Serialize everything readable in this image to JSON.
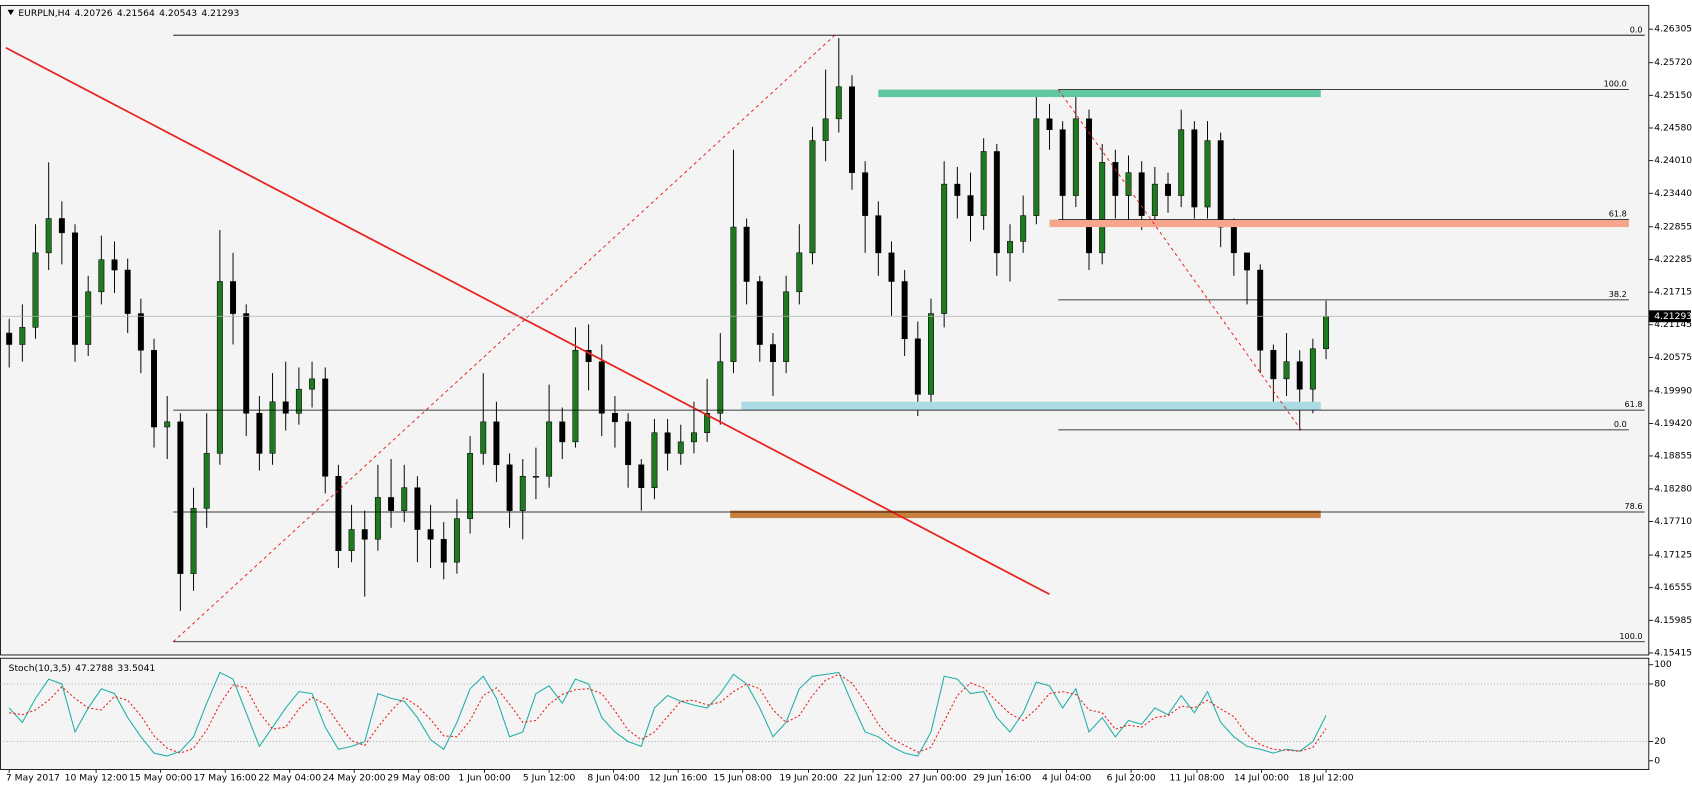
{
  "chart_data": [
    {
      "type": "candlestick",
      "symbol": "EURPLN,H4",
      "up_color": "#1f7a1f",
      "down_color": "#000000",
      "xlim": [
        -0.656,
        124.51
      ],
      "ylim": [
        4.1538,
        4.2672
      ],
      "yticks": [
        4.26305,
        {
          "value": 4.2572,
          "label": "4.25720"
        },
        {
          "value": 4.2515,
          "label": "4.25150"
        },
        {
          "value": 4.2458,
          "label": "4.24580"
        },
        {
          "value": 4.2401,
          "label": "4.24010"
        },
        {
          "value": 4.2344,
          "label": "4.23440"
        },
        4.22855,
        4.22285,
        4.21715,
        4.21145,
        4.20575,
        {
          "value": 4.1999,
          "label": "4.19990"
        },
        {
          "value": 4.1942,
          "label": "4.19420"
        },
        4.18855,
        {
          "value": 4.1828,
          "label": "4.18280"
        },
        {
          "value": 4.1771,
          "label": "4.17710"
        },
        4.17125,
        4.16555,
        4.15985,
        4.15415
      ],
      "current_price_line": true,
      "open": [
        4.21,
        4.208,
        4.211,
        4.224,
        4.23,
        4.2275,
        4.208,
        4.2172,
        4.2228,
        4.221,
        4.2134,
        4.207,
        4.1936,
        4.1945,
        4.168,
        4.1794,
        4.189,
        4.219,
        4.2134,
        4.196,
        4.189,
        4.198,
        4.196,
        4.2002,
        4.202,
        4.185,
        4.172,
        4.1757,
        4.174,
        4.1813,
        4.179,
        4.183,
        4.1757,
        4.174,
        4.17,
        4.1776,
        4.189,
        4.1945,
        4.187,
        4.179,
        4.185,
        4.185,
        4.1945,
        4.191,
        4.207,
        4.205,
        4.196,
        4.1945,
        4.187,
        4.183,
        4.1926,
        4.189,
        4.191,
        4.1926,
        4.196,
        4.205,
        4.2285,
        4.219,
        4.208,
        4.205,
        4.2172,
        4.224,
        4.2436,
        4.2474,
        4.253,
        4.238,
        4.2305,
        4.224,
        4.219,
        4.209,
        4.1993,
        4.2134,
        4.236,
        4.234,
        4.2305,
        4.2417,
        4.224,
        4.226,
        4.2305,
        4.2474,
        4.2455,
        4.234,
        4.2474,
        4.224,
        4.2398,
        4.234,
        4.238,
        4.2305,
        4.236,
        4.234,
        4.2455,
        4.232,
        4.2436,
        4.2285,
        4.224,
        4.221,
        4.207,
        4.202,
        4.205,
        4.2002,
        4.20726
      ],
      "high": [
        4.2125,
        4.215,
        4.229,
        4.2398,
        4.233,
        4.229,
        4.22,
        4.227,
        4.226,
        4.223,
        4.216,
        4.209,
        4.199,
        4.196,
        4.183,
        4.196,
        4.228,
        4.224,
        4.215,
        4.199,
        4.203,
        4.205,
        4.204,
        4.205,
        4.204,
        4.187,
        4.18,
        4.179,
        4.187,
        4.188,
        4.187,
        4.185,
        4.18,
        4.177,
        4.181,
        4.192,
        4.203,
        4.198,
        4.189,
        4.188,
        4.19,
        4.201,
        4.197,
        4.211,
        4.2115,
        4.208,
        4.199,
        4.196,
        4.188,
        4.195,
        4.195,
        4.194,
        4.198,
        4.202,
        4.21,
        4.242,
        4.23,
        4.22,
        4.21,
        4.22,
        4.229,
        4.246,
        4.256,
        4.2615,
        4.255,
        4.24,
        4.233,
        4.226,
        4.221,
        4.212,
        4.216,
        4.24,
        4.239,
        4.238,
        4.244,
        4.243,
        4.229,
        4.234,
        4.252,
        4.25,
        4.247,
        4.2525,
        4.249,
        4.243,
        4.242,
        4.241,
        4.24,
        4.239,
        4.238,
        4.249,
        4.247,
        4.247,
        4.245,
        4.23,
        4.224,
        4.222,
        4.208,
        4.21,
        4.207,
        4.209,
        4.21564
      ],
      "low": [
        4.204,
        4.205,
        4.209,
        4.221,
        4.222,
        4.205,
        4.206,
        4.215,
        4.217,
        4.21,
        4.203,
        4.19,
        4.188,
        4.1615,
        4.165,
        4.176,
        4.187,
        4.208,
        4.192,
        4.186,
        4.187,
        4.193,
        4.194,
        4.197,
        4.182,
        4.169,
        4.17,
        4.164,
        4.172,
        4.176,
        4.177,
        4.17,
        4.169,
        4.167,
        4.168,
        4.175,
        4.187,
        4.184,
        4.176,
        4.174,
        4.181,
        4.183,
        4.188,
        4.19,
        4.2,
        4.192,
        4.19,
        4.183,
        4.179,
        4.181,
        4.186,
        4.187,
        4.189,
        4.191,
        4.194,
        4.203,
        4.215,
        4.205,
        4.199,
        4.203,
        4.215,
        4.222,
        4.24,
        4.245,
        4.235,
        4.224,
        4.22,
        4.213,
        4.206,
        4.1955,
        4.197,
        4.211,
        4.23,
        4.226,
        4.228,
        4.22,
        4.219,
        4.224,
        4.229,
        4.242,
        4.229,
        4.232,
        4.221,
        4.222,
        4.23,
        4.229,
        4.228,
        4.229,
        4.231,
        4.232,
        4.23,
        4.23,
        4.225,
        4.22,
        4.215,
        4.203,
        4.198,
        4.199,
        4.193,
        4.196,
        4.20543
      ],
      "close": [
        4.208,
        4.211,
        4.224,
        4.23,
        4.2275,
        4.208,
        4.2172,
        4.2228,
        4.221,
        4.2134,
        4.207,
        4.1936,
        4.1945,
        4.168,
        4.1794,
        4.189,
        4.219,
        4.2134,
        4.196,
        4.189,
        4.198,
        4.196,
        4.2002,
        4.202,
        4.185,
        4.172,
        4.1757,
        4.174,
        4.1813,
        4.179,
        4.183,
        4.1757,
        4.174,
        4.17,
        4.1776,
        4.189,
        4.1945,
        4.187,
        4.179,
        4.185,
        4.185,
        4.1945,
        4.191,
        4.207,
        4.205,
        4.196,
        4.1945,
        4.187,
        4.183,
        4.1926,
        4.189,
        4.191,
        4.1926,
        4.196,
        4.205,
        4.2285,
        4.219,
        4.208,
        4.205,
        4.2172,
        4.224,
        4.2436,
        4.2474,
        4.253,
        4.238,
        4.2305,
        4.224,
        4.219,
        4.209,
        4.1993,
        4.2134,
        4.236,
        4.234,
        4.2305,
        4.2417,
        4.224,
        4.226,
        4.2305,
        4.2474,
        4.2455,
        4.234,
        4.2474,
        4.224,
        4.2398,
        4.234,
        4.238,
        4.2305,
        4.236,
        4.234,
        4.2455,
        4.232,
        4.2436,
        4.2285,
        4.224,
        4.221,
        4.207,
        4.202,
        4.205,
        4.2002,
        4.20726,
        4.21293
      ],
      "trendlines": [
        {
          "x": [
            -0.25,
            79.0
          ],
          "y": [
            4.2598,
            4.1644
          ],
          "color": "#e8231f"
        }
      ],
      "zones": [
        {
          "x": [
            66.0,
            99.6
          ],
          "y": [
            4.2525,
            4.2512
          ],
          "color": "#5fc8a0"
        },
        {
          "x": [
            79.0,
            123.0
          ],
          "y": [
            4.2298,
            4.2285
          ],
          "color": "#f7a58c"
        },
        {
          "x": [
            55.6,
            99.6
          ],
          "y": [
            4.198,
            4.1965
          ],
          "color": "#a9dbe3"
        },
        {
          "x": [
            54.75,
            99.6
          ],
          "y": [
            4.179,
            4.1777
          ],
          "color": "#c8803c"
        }
      ],
      "fibs": [
        {
          "from": [
            12.46,
            4.1561
          ],
          "to": [
            62.7,
            4.262
          ],
          "x_end": 124.2,
          "color": "#e8231f",
          "levels": [
            {
              "value": 0,
              "label": "0.0"
            },
            61.8,
            78.6,
            {
              "value": 100,
              "label": "100.0"
            }
          ]
        },
        {
          "from": [
            79.67,
            4.2525
          ],
          "to": [
            98.1,
            4.1931
          ],
          "x_end": 123.0,
          "color": "#e8231f",
          "levels": [
            {
              "value": 0,
              "label": "0.0"
            },
            38.2,
            61.8,
            {
              "value": 100,
              "label": "100.0"
            }
          ]
        }
      ]
    },
    {
      "type": "line",
      "name": "Stoch(10,3,5)",
      "xlim": [
        -0.656,
        124.51
      ],
      "ylim": [
        -9.1,
        106.8
      ],
      "yticks": [
        0,
        20,
        80,
        100
      ],
      "levels": [
        20,
        80
      ],
      "xticks": [
        {
          "value": 0,
          "label": "7 May 2017"
        },
        {
          "value": 6.6,
          "label": "10 May 12:00"
        },
        {
          "value": 11.5,
          "label": "15 May 00:00"
        },
        {
          "value": 16.4,
          "label": "17 May 16:00"
        },
        {
          "value": 21.3,
          "label": "22 May 04:00"
        },
        {
          "value": 26.2,
          "label": "24 May 20:00"
        },
        {
          "value": 31.1,
          "label": "29 May 08:00"
        },
        {
          "value": 36.1,
          "label": "1 Jun 00:00"
        },
        {
          "value": 41,
          "label": "5 Jun 12:00"
        },
        {
          "value": 45.9,
          "label": "8 Jun 04:00"
        },
        {
          "value": 50.8,
          "label": "12 Jun 16:00"
        },
        {
          "value": 55.7,
          "label": "15 Jun 08:00"
        },
        {
          "value": 60.7,
          "label": "19 Jun 20:00"
        },
        {
          "value": 65.6,
          "label": "22 Jun 12:00"
        },
        {
          "value": 70.5,
          "label": "27 Jun 00:00"
        },
        {
          "value": 75.4,
          "label": "29 Jun 16:00"
        },
        {
          "value": 80.3,
          "label": "4 Jul 04:00"
        },
        {
          "value": 85.2,
          "label": "6 Jul 20:00"
        },
        {
          "value": 90.2,
          "label": "11 Jul 08:00"
        },
        {
          "value": 95.1,
          "label": "14 Jul 00:00"
        },
        {
          "value": 100,
          "label": "18 Jul 12:00"
        }
      ],
      "series": [
        {
          "color": "#22b0a8",
          "dashed": false,
          "values": [
            55,
            40,
            65,
            85,
            80,
            30,
            55,
            75,
            70,
            45,
            25,
            8,
            5,
            10,
            25,
            60,
            92,
            85,
            50,
            15,
            35,
            55,
            72,
            70,
            35,
            12,
            15,
            20,
            70,
            65,
            62,
            45,
            22,
            12,
            40,
            75,
            88,
            65,
            25,
            30,
            70,
            78,
            60,
            85,
            80,
            45,
            30,
            20,
            15,
            55,
            68,
            62,
            58,
            55,
            70,
            90,
            80,
            55,
            25,
            40,
            75,
            88,
            90,
            92,
            60,
            30,
            25,
            15,
            8,
            5,
            30,
            88,
            85,
            70,
            72,
            45,
            30,
            50,
            82,
            78,
            55,
            75,
            30,
            45,
            25,
            42,
            38,
            55,
            48,
            68,
            50,
            72,
            40,
            25,
            15,
            12,
            8,
            12,
            10,
            20,
            47.2788
          ]
        },
        {
          "color": "#e8231f",
          "dashed": true,
          "values": [
            50,
            48,
            53,
            63,
            77,
            65,
            55,
            53,
            67,
            63,
            47,
            26,
            13,
            8,
            13,
            32,
            59,
            79,
            76,
            50,
            33,
            35,
            54,
            66,
            59,
            39,
            21,
            16,
            35,
            52,
            66,
            57,
            43,
            26,
            25,
            42,
            68,
            76,
            59,
            40,
            42,
            59,
            69,
            74,
            75,
            70,
            52,
            32,
            22,
            30,
            46,
            62,
            63,
            58,
            61,
            72,
            80,
            75,
            53,
            40,
            47,
            68,
            84,
            90,
            81,
            61,
            38,
            23,
            16,
            9,
            14,
            41,
            68,
            81,
            76,
            62,
            49,
            42,
            54,
            70,
            72,
            69,
            53,
            50,
            33,
            37,
            35,
            45,
            47,
            57,
            55,
            63,
            54,
            46,
            27,
            17,
            12,
            11,
            10,
            14,
            33.5041
          ]
        }
      ]
    }
  ]
}
